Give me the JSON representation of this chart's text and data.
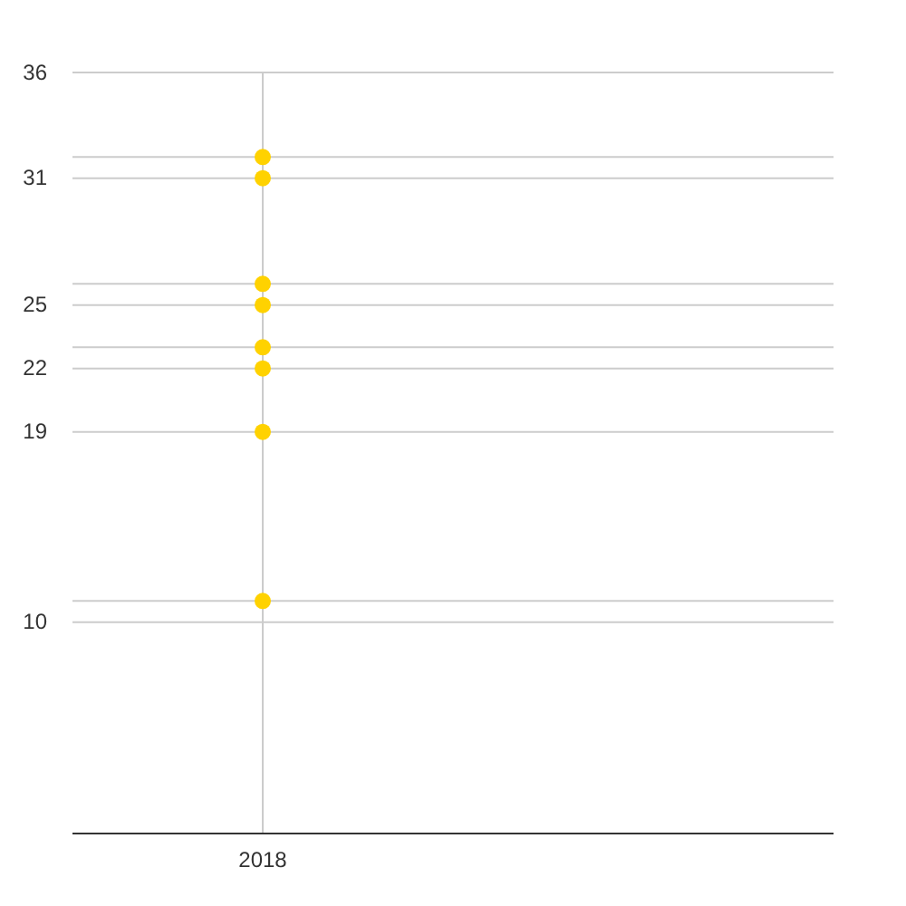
{
  "chart_data": {
    "type": "scatter",
    "categories": [
      "2018",
      null
    ],
    "series": [
      {
        "color": "#ffd200",
        "values": [
          32,
          null
        ]
      },
      {
        "color": "#ffd200",
        "values": [
          31,
          null
        ]
      },
      {
        "color": "#ffd200",
        "values": [
          26,
          null
        ]
      },
      {
        "color": "#ffd200",
        "values": [
          25,
          null
        ]
      },
      {
        "color": "#ffd200",
        "values": [
          23,
          null
        ]
      },
      {
        "color": "#ffd200",
        "values": [
          22,
          null
        ]
      },
      {
        "color": "#ffd200",
        "values": [
          19,
          null
        ]
      },
      {
        "color": "#ffd200",
        "values": [
          11,
          null
        ]
      }
    ],
    "ylim": [
      0,
      36
    ],
    "yticks": [
      10,
      {
        "value": 11,
        "label": null
      },
      19,
      22,
      {
        "value": 23,
        "label": null
      },
      25,
      {
        "value": 26,
        "label": null
      },
      31,
      {
        "value": 32,
        "label": null
      },
      36
    ],
    "grid": true,
    "marker": "circle"
  }
}
